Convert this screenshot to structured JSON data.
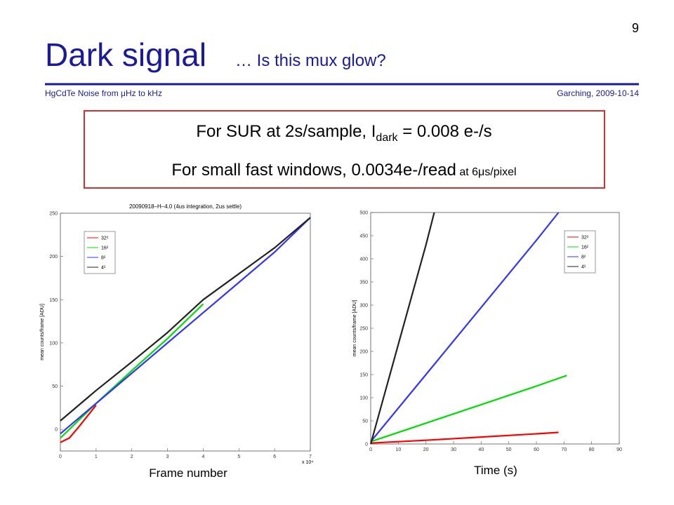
{
  "slide": {
    "page_number": "9",
    "title": "Dark signal",
    "subtitle": "… Is this mux glow?",
    "footer_left": "HgCdTe Noise from μHz to kHz",
    "footer_right": "Garching, 2009-10-14",
    "box": {
      "line1": [
        "For SUR at 2s/sample,  I",
        "dark",
        " = 0.008 e-/s"
      ],
      "line2": [
        "For small fast windows,  0.0034e-/read",
        " at 6μs/pixel"
      ]
    }
  },
  "chart_data": [
    {
      "type": "line",
      "title": "20090918–H–4.0 (4us integration, 2us settle)",
      "y_label": "mean counts/frame [ADU]",
      "x_label": "Frame number",
      "x_multiplier": "x 10⁴",
      "xlim": [
        0,
        7
      ],
      "xticks": [
        0,
        1,
        2,
        3,
        4,
        5,
        6,
        7
      ],
      "ylim": [
        -25,
        250
      ],
      "yticks": [
        0,
        50,
        100,
        150,
        200,
        250
      ],
      "legend": "upper left",
      "series": [
        {
          "name": "32²",
          "color": "#ff0000",
          "x": [
            0,
            0.25,
            0.5,
            0.75,
            1.0
          ],
          "values": [
            -15,
            -10,
            2,
            15,
            28
          ]
        },
        {
          "name": "16²",
          "color": "#00dd00",
          "x": [
            0,
            1,
            2,
            3,
            4
          ],
          "values": [
            -10,
            30,
            68,
            105,
            145
          ]
        },
        {
          "name": "8²",
          "color": "#3333ff",
          "x": [
            0,
            1,
            2,
            3,
            4,
            5,
            6,
            7
          ],
          "values": [
            -5,
            30,
            65,
            100,
            135,
            170,
            205,
            245
          ]
        },
        {
          "name": "4²",
          "color": "#222222",
          "x": [
            0,
            1,
            2,
            3,
            4,
            5,
            6,
            7
          ],
          "values": [
            10,
            45,
            78,
            112,
            150,
            180,
            210,
            245
          ]
        }
      ]
    },
    {
      "type": "line",
      "y_label": "mean counts/frame [ADU]",
      "x_label": "Time (s)",
      "xlim": [
        0,
        90
      ],
      "xticks": [
        0,
        10,
        20,
        30,
        40,
        50,
        60,
        70,
        80,
        90
      ],
      "ylim": [
        0,
        500
      ],
      "yticks": [
        0,
        50,
        100,
        150,
        200,
        250,
        300,
        350,
        400,
        450,
        500
      ],
      "legend": "upper right",
      "series": [
        {
          "name": "32²",
          "color": "#ff0000",
          "x": [
            0,
            20,
            40,
            60,
            68
          ],
          "values": [
            2,
            8,
            15,
            22,
            25
          ]
        },
        {
          "name": "16²",
          "color": "#00dd00",
          "x": [
            0,
            20,
            40,
            60,
            71
          ],
          "values": [
            5,
            45,
            85,
            125,
            148
          ]
        },
        {
          "name": "8²",
          "color": "#3333ff",
          "x": [
            0,
            20,
            40,
            60,
            68
          ],
          "values": [
            5,
            150,
            295,
            440,
            500
          ]
        },
        {
          "name": "4²",
          "color": "#222222",
          "x": [
            0,
            10,
            20,
            23
          ],
          "values": [
            0,
            215,
            430,
            500
          ]
        }
      ]
    }
  ]
}
